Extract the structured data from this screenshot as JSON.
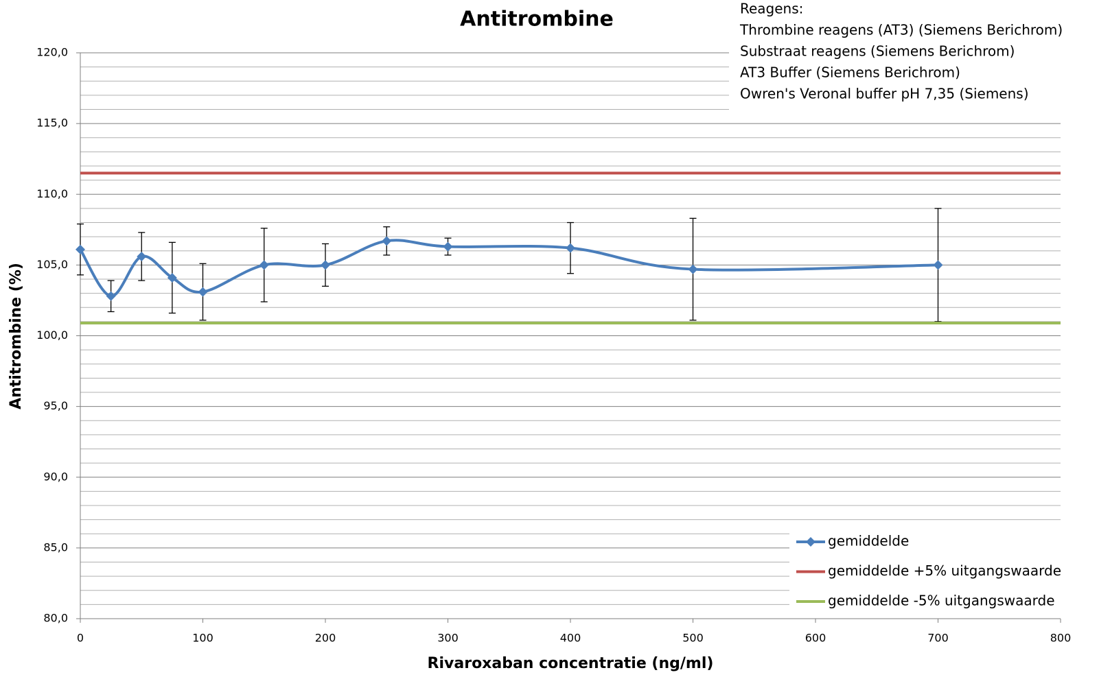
{
  "chart_data": {
    "type": "line",
    "title": "Antitrombine",
    "xlabel": "Rivaroxaban concentratie (ng/ml)",
    "ylabel": "Antitrombine (%)",
    "annotation": [
      "Reagens:",
      "Thrombine reagens (AT3) (Siemens Berichrom)",
      "Substraat reagens (Siemens Berichrom)",
      "AT3 Buffer (Siemens Berichrom)",
      "Owren's Veronal buffer pH 7,35 (Siemens)"
    ],
    "x": [
      0,
      25,
      50,
      75,
      100,
      150,
      200,
      250,
      300,
      400,
      500,
      700
    ],
    "series": [
      {
        "name": "gemiddelde",
        "color": "#4a7ebb",
        "smooth": true,
        "marker": "diamond",
        "values": [
          106.1,
          102.8,
          105.6,
          104.1,
          103.1,
          105.0,
          105.0,
          106.7,
          106.3,
          106.2,
          104.7,
          105.0
        ],
        "errors": [
          1.8,
          1.1,
          1.7,
          2.5,
          2.0,
          2.6,
          1.5,
          1.0,
          0.6,
          1.8,
          3.6,
          4.0
        ]
      },
      {
        "name": "gemiddelde +5% uitgangswaarde",
        "color": "#c0504d",
        "value": 111.5
      },
      {
        "name": "gemiddelde -5% uitgangswaarde",
        "color": "#9bbb59",
        "value": 100.9
      }
    ],
    "xlim": [
      0,
      800
    ],
    "xticks": [
      0,
      100,
      200,
      300,
      400,
      500,
      600,
      700,
      800
    ],
    "ylim": [
      80,
      120
    ],
    "yticks": [
      {
        "value": 80,
        "label": "80,0"
      },
      {
        "value": 85,
        "label": "85,0"
      },
      {
        "value": 90,
        "label": "90,0"
      },
      {
        "value": 95,
        "label": "95,0"
      },
      {
        "value": 100,
        "label": "100,0"
      },
      {
        "value": 105,
        "label": "105,0"
      },
      {
        "value": 110,
        "label": "110,0"
      },
      {
        "value": 115,
        "label": "115,0"
      },
      {
        "value": 120,
        "label": "120,0"
      }
    ],
    "minor_yticks": [
      81,
      82,
      83,
      84,
      86,
      87,
      88,
      89,
      91,
      92,
      93,
      94,
      96,
      97,
      98,
      99,
      101,
      102,
      103,
      104,
      106,
      107,
      108,
      109,
      111,
      112,
      113,
      114,
      116,
      117,
      118,
      119
    ],
    "grid": true,
    "legend": "lower right"
  }
}
